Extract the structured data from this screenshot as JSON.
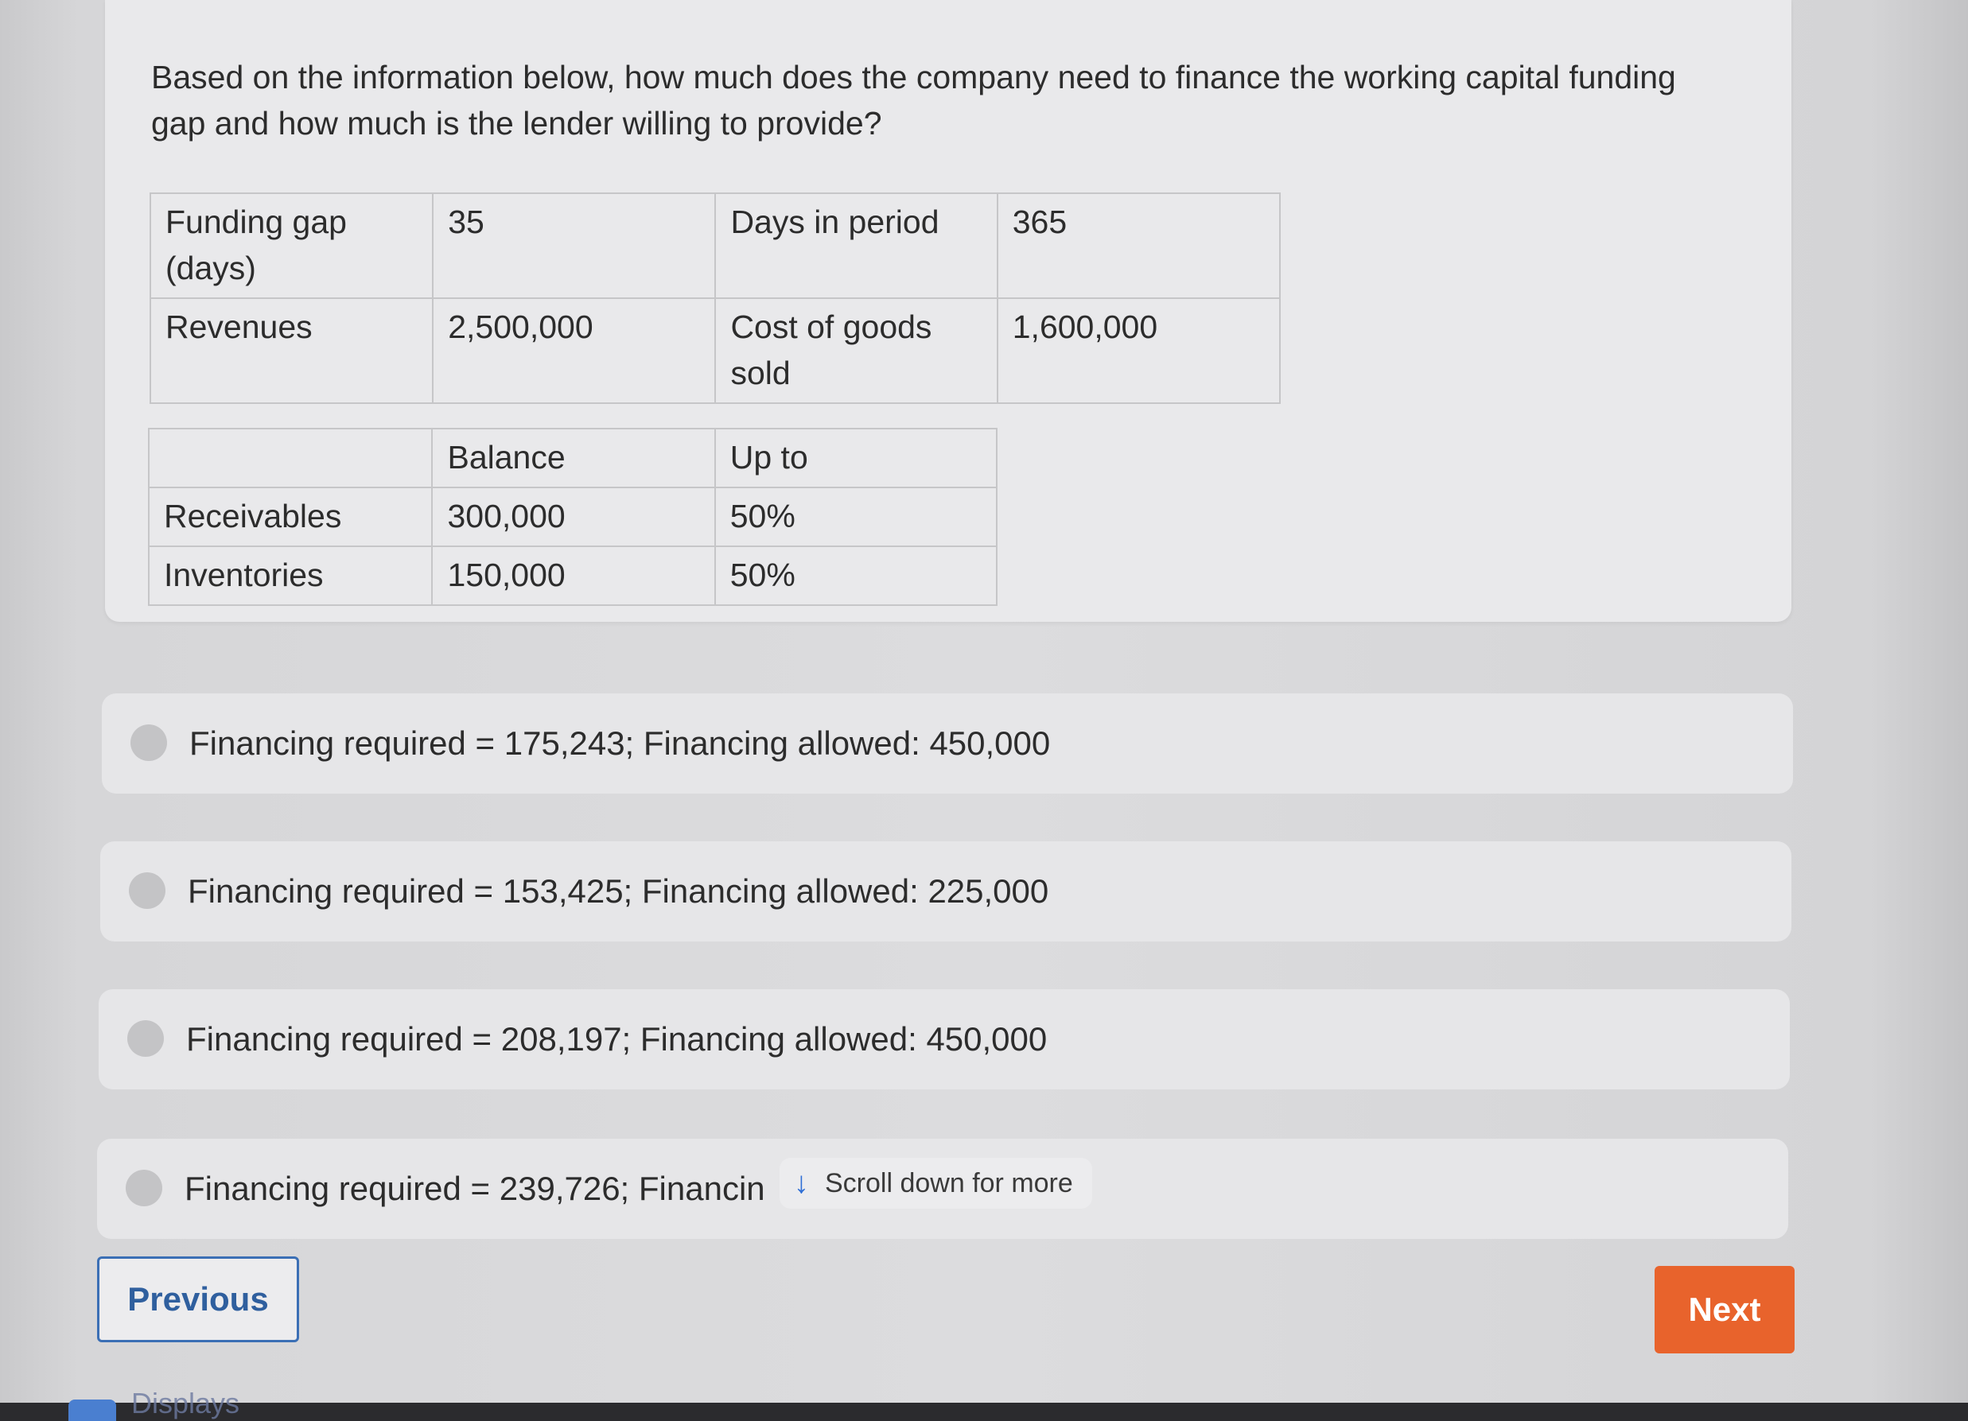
{
  "question": {
    "text": "Based on the information below, how much does the company need to finance the working capital funding gap and how much is the lender willing to provide?"
  },
  "funding_table": {
    "rows": [
      [
        "Funding gap (days)",
        "35",
        "Days in period",
        "365"
      ],
      [
        "Revenues",
        "2,500,000",
        "Cost of goods sold",
        "1,600,000"
      ]
    ]
  },
  "balance_table": {
    "headers": [
      "",
      "Balance",
      "Up to"
    ],
    "rows": [
      [
        "Receivables",
        "300,000",
        "50%"
      ],
      [
        "Inventories",
        "150,000",
        "50%"
      ]
    ]
  },
  "options": [
    {
      "label": "Financing required = 175,243; Financing allowed: 450,000"
    },
    {
      "label": "Financing required = 153,425; Financing allowed: 225,000"
    },
    {
      "label": "Financing required = 208,197; Financing allowed: 450,000"
    },
    {
      "label": "Financing required = 239,726; Financin"
    }
  ],
  "scroll_hint": {
    "text": "Scroll down for more",
    "icon": "arrow-down-icon"
  },
  "navigation": {
    "previous_label": "Previous",
    "next_label": "Next"
  },
  "dock": {
    "label": "Displays"
  },
  "colors": {
    "next_button": "#e8632c",
    "previous_border": "#3b6fb5",
    "scroll_arrow": "#2f6fd6"
  }
}
